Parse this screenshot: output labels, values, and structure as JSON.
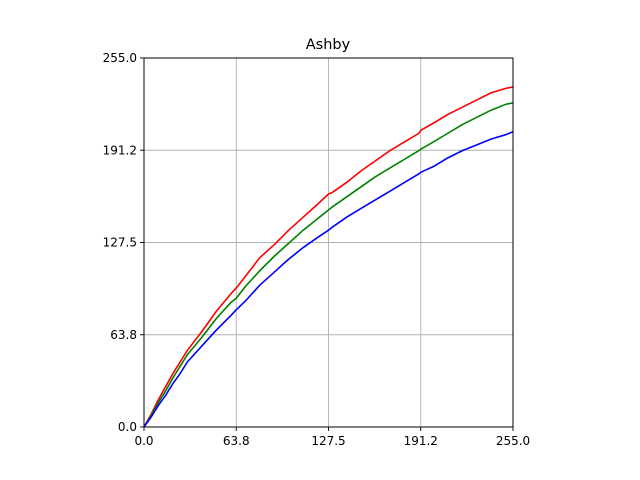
{
  "chart_data": {
    "type": "line",
    "title": "Ashby",
    "xlabel": "",
    "ylabel": "",
    "xlim": [
      0,
      255
    ],
    "ylim": [
      0,
      255
    ],
    "xticks": [
      0,
      63.75,
      127.5,
      191.25,
      255
    ],
    "yticks": [
      0,
      63.75,
      127.5,
      191.25,
      255
    ],
    "xtick_labels": [
      "0.0",
      "63.8",
      "127.5",
      "191.2",
      "255.0"
    ],
    "ytick_labels": [
      "0.0",
      "63.8",
      "127.5",
      "191.2",
      "255.0"
    ],
    "grid": true,
    "legend": "none",
    "colors": {
      "red": "#ff0000",
      "green": "#008000",
      "blue": "#0000ff",
      "grid": "#b0b0b0",
      "axis": "#000000"
    },
    "x": [
      0,
      5,
      10,
      15,
      20,
      25,
      30,
      40,
      50,
      60,
      63.75,
      70,
      80,
      90,
      100,
      110,
      120,
      127.5,
      130,
      140,
      150,
      160,
      170,
      180,
      190,
      191.25,
      200,
      210,
      220,
      230,
      240,
      250,
      255
    ],
    "series": [
      {
        "color": "#ff0000",
        "values": [
          0,
          9,
          19,
          28,
          37,
          45,
          53,
          66,
          80,
          92,
          96,
          104,
          117,
          126,
          136,
          145,
          154,
          161,
          162,
          169,
          177,
          184,
          191,
          197,
          203,
          205,
          210,
          216,
          221,
          226,
          231,
          234,
          235
        ]
      },
      {
        "color": "#008000",
        "values": [
          0,
          8,
          17,
          25,
          34,
          42,
          50,
          62,
          75,
          86,
          89,
          97,
          108,
          118,
          127,
          136,
          144,
          150,
          152,
          159,
          166,
          173,
          179,
          185,
          191,
          192,
          197,
          203,
          209,
          214,
          219,
          223,
          224
        ]
      },
      {
        "color": "#0000ff",
        "values": [
          0,
          7,
          15,
          22,
          30,
          37,
          45,
          56,
          67,
          77,
          81,
          87,
          98,
          107,
          116,
          124,
          131,
          136,
          138,
          145,
          151,
          157,
          163,
          169,
          175,
          176,
          180,
          186,
          191,
          195,
          199,
          202,
          204
        ]
      }
    ]
  }
}
